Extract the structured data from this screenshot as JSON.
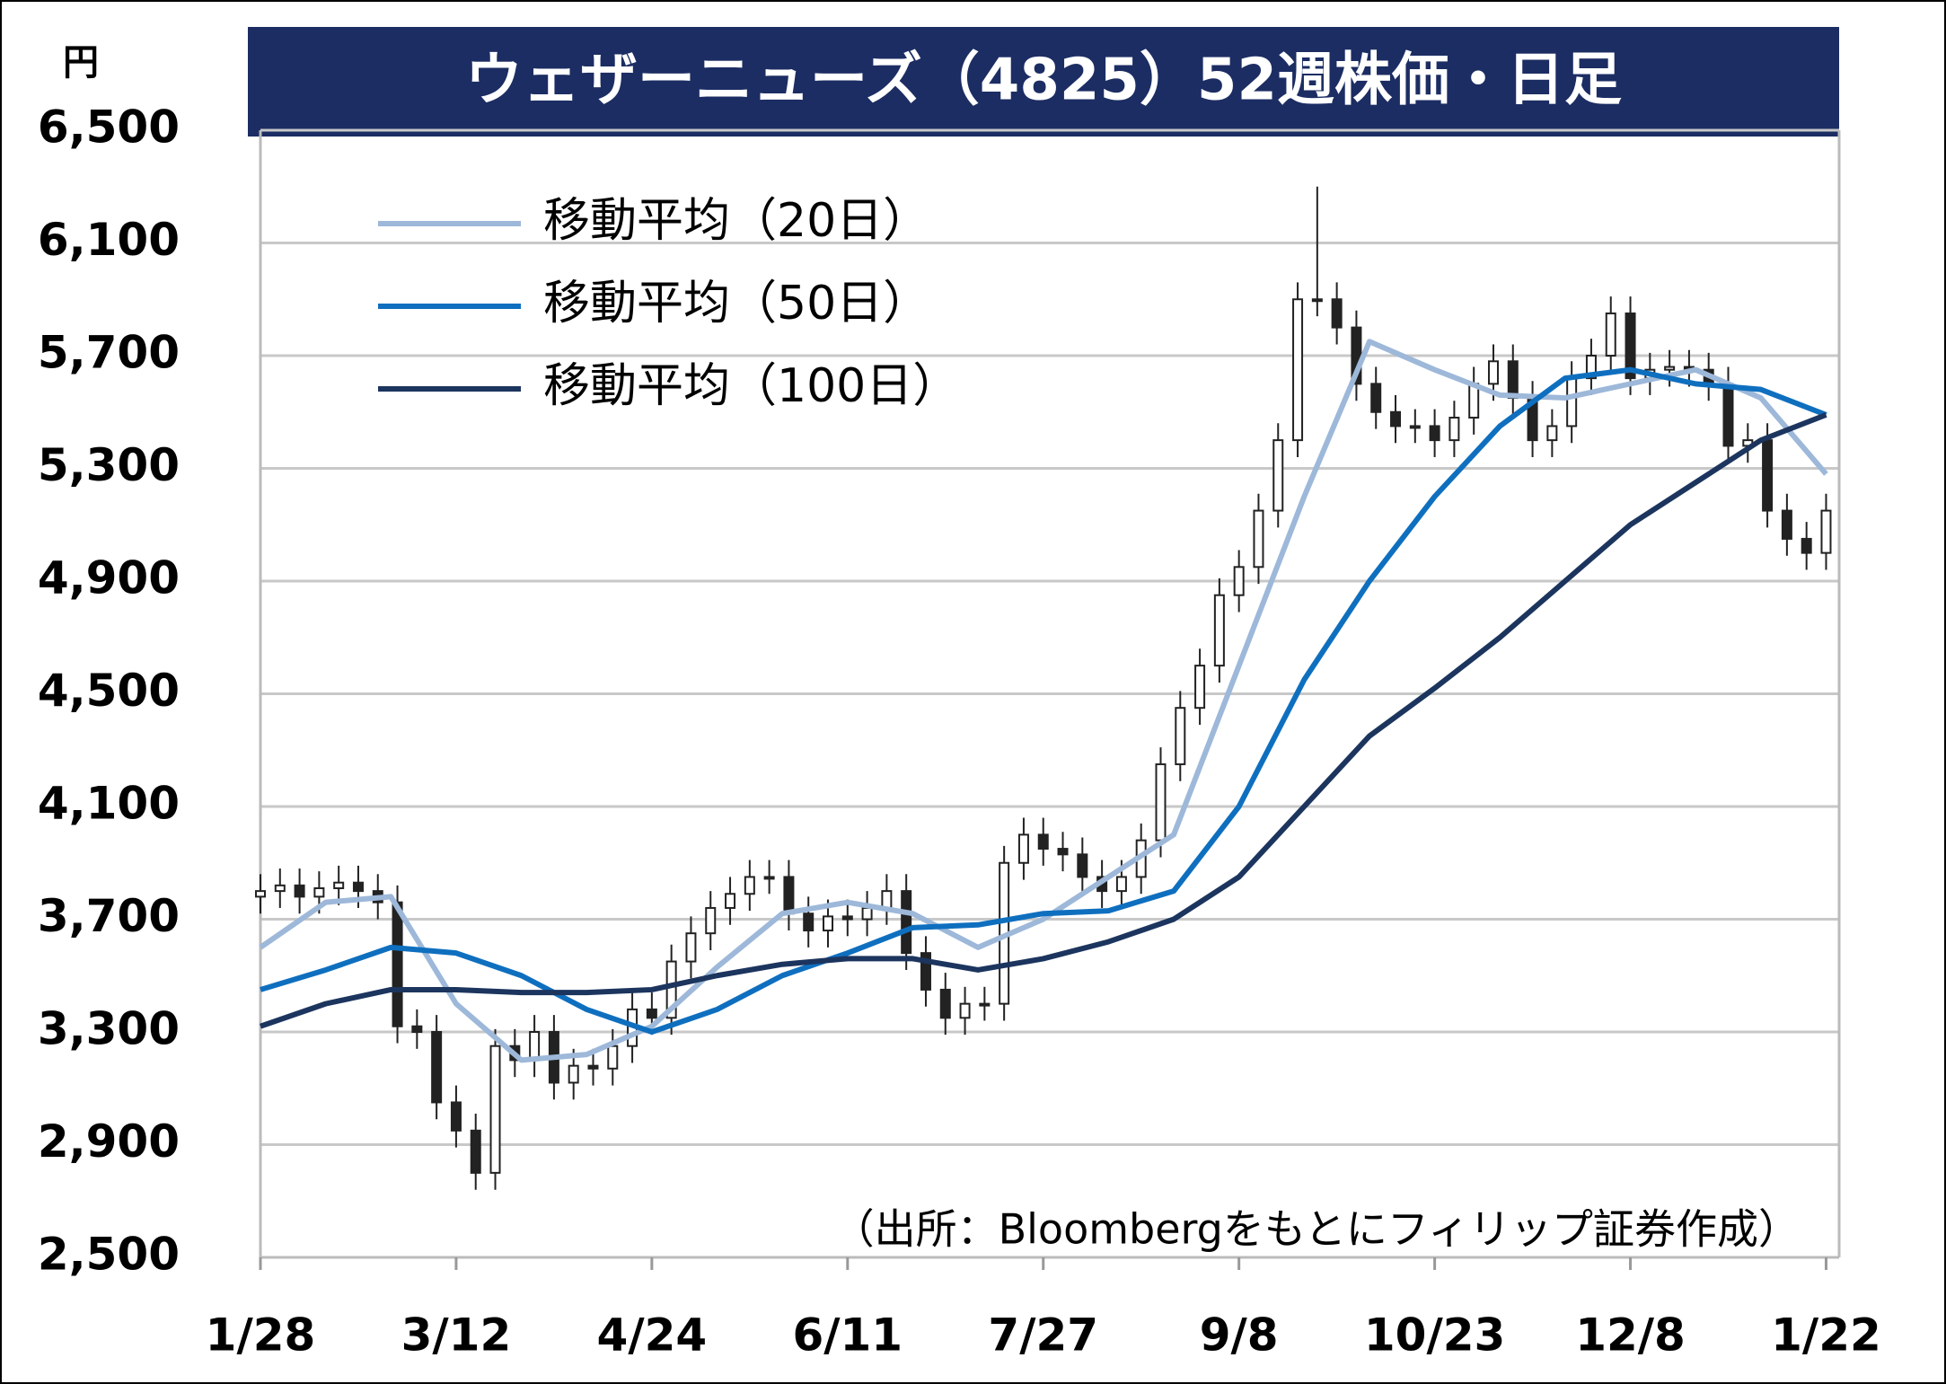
{
  "chart_data": {
    "type": "candlestick",
    "title": "ウェザーニューズ（4825）52週株価・日足",
    "y_unit": "円",
    "source": "（出所：Bloombergをもとにフィリップ証券作成）",
    "xlim": [
      0,
      242
    ],
    "xticks": [
      {
        "value": 0,
        "label": "1/28"
      },
      {
        "value": 30,
        "label": "3/12"
      },
      {
        "value": 60,
        "label": "4/24"
      },
      {
        "value": 90,
        "label": "6/11"
      },
      {
        "value": 120,
        "label": "7/27"
      },
      {
        "value": 150,
        "label": "9/8"
      },
      {
        "value": 180,
        "label": "10/23"
      },
      {
        "value": 210,
        "label": "12/8"
      },
      {
        "value": 240,
        "label": "1/22"
      }
    ],
    "ylim": [
      2500,
      6500
    ],
    "yticks": [
      {
        "value": 2500,
        "label": "2,500"
      },
      {
        "value": 2900,
        "label": "2,900"
      },
      {
        "value": 3300,
        "label": "3,300"
      },
      {
        "value": 3700,
        "label": "3,700"
      },
      {
        "value": 4100,
        "label": "4,100"
      },
      {
        "value": 4500,
        "label": "4,500"
      },
      {
        "value": 4900,
        "label": "4,900"
      },
      {
        "value": 5300,
        "label": "5,300"
      },
      {
        "value": 5700,
        "label": "5,700"
      },
      {
        "value": 6100,
        "label": "6,100"
      },
      {
        "value": 6500,
        "label": "6,500"
      }
    ],
    "grid": true,
    "candles": {
      "x": [
        0,
        3,
        6,
        9,
        12,
        15,
        18,
        21,
        24,
        27,
        30,
        33,
        36,
        39,
        42,
        45,
        48,
        51,
        54,
        57,
        60,
        63,
        66,
        69,
        72,
        75,
        78,
        81,
        84,
        87,
        90,
        93,
        96,
        99,
        102,
        105,
        108,
        111,
        114,
        117,
        120,
        123,
        126,
        129,
        132,
        135,
        138,
        141,
        144,
        147,
        150,
        153,
        156,
        159,
        162,
        165,
        168,
        171,
        174,
        177,
        180,
        183,
        186,
        189,
        192,
        195,
        198,
        201,
        204,
        207,
        210,
        213,
        216,
        219,
        222,
        225,
        228,
        231,
        234,
        237,
        240
      ],
      "open": [
        3780,
        3800,
        3820,
        3780,
        3810,
        3830,
        3800,
        3760,
        3320,
        3300,
        3050,
        2950,
        2800,
        3250,
        3200,
        3300,
        3120,
        3180,
        3170,
        3250,
        3380,
        3350,
        3550,
        3650,
        3740,
        3790,
        3850,
        3850,
        3720,
        3660,
        3710,
        3700,
        3740,
        3800,
        3580,
        3450,
        3350,
        3400,
        3400,
        3900,
        4000,
        3950,
        3930,
        3850,
        3800,
        3850,
        3980,
        4250,
        4450,
        4600,
        4850,
        4950,
        5150,
        5400,
        5900,
        5900,
        5800,
        5600,
        5500,
        5450,
        5450,
        5400,
        5480,
        5600,
        5680,
        5550,
        5400,
        5450,
        5620,
        5700,
        5850,
        5620,
        5650,
        5660,
        5650,
        5600,
        5380,
        5400,
        5150,
        5050,
        5000
      ],
      "high": [
        3860,
        3880,
        3880,
        3870,
        3890,
        3890,
        3860,
        3820,
        3380,
        3360,
        3110,
        3010,
        3310,
        3310,
        3360,
        3360,
        3240,
        3240,
        3310,
        3440,
        3440,
        3610,
        3710,
        3800,
        3850,
        3910,
        3910,
        3910,
        3780,
        3770,
        3770,
        3800,
        3860,
        3860,
        3640,
        3510,
        3460,
        3460,
        3960,
        4060,
        4060,
        4010,
        3990,
        3910,
        3910,
        4040,
        4310,
        4510,
        4660,
        4910,
        5010,
        5210,
        5460,
        5960,
        6300,
        5960,
        5860,
        5660,
        5560,
        5510,
        5510,
        5540,
        5660,
        5740,
        5740,
        5610,
        5510,
        5680,
        5760,
        5910,
        5910,
        5710,
        5720,
        5720,
        5710,
        5660,
        5460,
        5460,
        5210,
        5110,
        5210
      ],
      "low": [
        3720,
        3740,
        3720,
        3720,
        3750,
        3740,
        3700,
        3260,
        3240,
        2990,
        2890,
        2740,
        2740,
        3140,
        3140,
        3060,
        3060,
        3110,
        3110,
        3190,
        3290,
        3290,
        3490,
        3590,
        3680,
        3730,
        3790,
        3660,
        3600,
        3600,
        3640,
        3640,
        3680,
        3520,
        3390,
        3290,
        3290,
        3340,
        3340,
        3840,
        3890,
        3870,
        3790,
        3740,
        3740,
        3790,
        3920,
        4190,
        4390,
        4540,
        4790,
        4890,
        5090,
        5340,
        5840,
        5740,
        5540,
        5440,
        5390,
        5390,
        5340,
        5340,
        5420,
        5540,
        5490,
        5340,
        5340,
        5390,
        5560,
        5640,
        5560,
        5560,
        5590,
        5590,
        5540,
        5320,
        5320,
        5090,
        4990,
        4940,
        4940
      ],
      "close": [
        3800,
        3820,
        3780,
        3810,
        3830,
        3800,
        3760,
        3320,
        3300,
        3050,
        2950,
        2800,
        3250,
        3200,
        3300,
        3120,
        3180,
        3170,
        3250,
        3380,
        3350,
        3550,
        3650,
        3740,
        3790,
        3850,
        3850,
        3720,
        3660,
        3710,
        3700,
        3740,
        3800,
        3580,
        3450,
        3350,
        3400,
        3400,
        3900,
        4000,
        3950,
        3930,
        3850,
        3800,
        3850,
        3980,
        4250,
        4450,
        4600,
        4850,
        4950,
        5150,
        5400,
        5900,
        5900,
        5800,
        5600,
        5500,
        5450,
        5450,
        5400,
        5480,
        5600,
        5680,
        5550,
        5400,
        5450,
        5620,
        5700,
        5850,
        5620,
        5650,
        5660,
        5650,
        5600,
        5380,
        5400,
        5150,
        5050,
        5000,
        5150
      ]
    },
    "series": [
      {
        "name": "移動平均（20日）",
        "color": "#9db8d9",
        "x": [
          0,
          10,
          20,
          30,
          40,
          50,
          60,
          70,
          80,
          90,
          100,
          110,
          120,
          130,
          140,
          150,
          160,
          170,
          180,
          190,
          200,
          210,
          220,
          230,
          240
        ],
        "values": [
          3600,
          3760,
          3780,
          3400,
          3200,
          3220,
          3320,
          3530,
          3720,
          3760,
          3720,
          3600,
          3700,
          3850,
          4000,
          4600,
          5200,
          5750,
          5650,
          5560,
          5550,
          5600,
          5650,
          5550,
          5280
        ]
      },
      {
        "name": "移動平均（50日）",
        "color": "#0f6fbf",
        "x": [
          0,
          10,
          20,
          30,
          40,
          50,
          60,
          70,
          80,
          90,
          100,
          110,
          120,
          130,
          140,
          150,
          160,
          170,
          180,
          190,
          200,
          210,
          220,
          230,
          240
        ],
        "values": [
          3450,
          3520,
          3600,
          3580,
          3500,
          3380,
          3300,
          3380,
          3500,
          3580,
          3670,
          3680,
          3720,
          3730,
          3800,
          4100,
          4550,
          4900,
          5200,
          5450,
          5620,
          5650,
          5600,
          5580,
          5490
        ]
      },
      {
        "name": "移動平均（100日）",
        "color": "#1c355e",
        "x": [
          0,
          10,
          20,
          30,
          40,
          50,
          60,
          70,
          80,
          90,
          100,
          110,
          120,
          130,
          140,
          150,
          160,
          170,
          180,
          190,
          200,
          210,
          220,
          230,
          240
        ],
        "values": [
          3320,
          3400,
          3450,
          3450,
          3440,
          3440,
          3450,
          3500,
          3540,
          3560,
          3560,
          3520,
          3560,
          3620,
          3700,
          3850,
          4100,
          4350,
          4520,
          4700,
          4900,
          5100,
          5250,
          5400,
          5490
        ]
      }
    ]
  }
}
